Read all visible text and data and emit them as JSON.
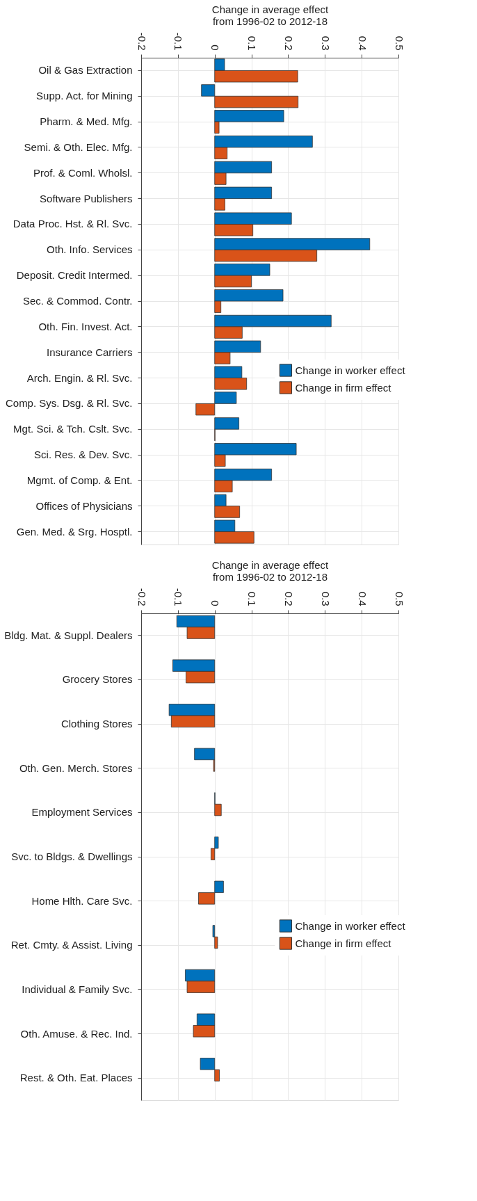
{
  "chart_data": [
    {
      "type": "bar",
      "orientation": "horizontal",
      "xlabel": "Change in average effect\nfrom 1996-02 to 2012-18",
      "categories": [
        "Oil & Gas Extraction",
        "Supp. Act. for Mining",
        "Pharm. & Med. Mfg.",
        "Semi. & Oth. Elec. Mfg.",
        "Prof. & Coml. Wholsl.",
        "Software Publishers",
        "Data Proc. Hst. & Rl. Svc.",
        "Oth. Info. Services",
        "Deposit. Credit Intermed.",
        "Sec. & Commod. Contr.",
        "Oth. Fin. Invest. Act.",
        "Insurance Carriers",
        "Arch. Engin. & Rl. Svc.",
        "Comp. Sys. Dsg. & Rl. Svc.",
        "Mgt. Sci. & Tch. Cslt. Svc.",
        "Sci. Res. & Dev. Svc.",
        "Mgmt. of Comp. & Ent.",
        "Offices of Physicians",
        "Gen. Med. & Srg. Hosptl."
      ],
      "series": [
        {
          "name": "Change in worker effect",
          "color": "#0072bd",
          "values": [
            0.027,
            -0.036,
            0.188,
            0.266,
            0.155,
            0.155,
            0.209,
            0.422,
            0.15,
            0.186,
            0.317,
            0.125,
            0.074,
            0.059,
            0.066,
            0.222,
            0.155,
            0.031,
            0.055
          ]
        },
        {
          "name": "Change in firm effect",
          "color": "#d95319",
          "values": [
            0.226,
            0.227,
            0.012,
            0.034,
            0.031,
            0.028,
            0.104,
            0.278,
            0.1,
            0.017,
            0.075,
            0.042,
            0.087,
            -0.051,
            0.001,
            0.029,
            0.048,
            0.068,
            0.107
          ]
        }
      ],
      "xlim": [
        -0.2,
        0.5
      ],
      "xticks": [
        -0.2,
        -0.1,
        0,
        0.1,
        0.2,
        0.3,
        0.4,
        0.5
      ],
      "grid": true,
      "legend": "right"
    },
    {
      "type": "bar",
      "orientation": "horizontal",
      "xlabel": "Change in average effect\nfrom 1996-02 to 2012-18",
      "categories": [
        "Bldg. Mat. & Suppl. Dealers",
        "Grocery Stores",
        "Clothing Stores",
        "Oth. Gen. Merch. Stores",
        "Employment Services",
        "Svc. to Bldgs. & Dwellings",
        "Home Hlth. Care Svc.",
        "Ret. Cmty. & Assist. Living",
        "Individual & Family Svc.",
        "Oth. Amuse. & Rec. Ind.",
        "Rest. & Oth. Eat. Places"
      ],
      "series": [
        {
          "name": "Change in worker effect",
          "color": "#0072bd",
          "values": [
            -0.103,
            -0.114,
            -0.124,
            -0.055,
            0.001,
            0.01,
            0.024,
            -0.005,
            -0.08,
            -0.048,
            -0.039
          ]
        },
        {
          "name": "Change in firm effect",
          "color": "#d95319",
          "values": [
            -0.075,
            -0.078,
            -0.118,
            -0.003,
            0.018,
            -0.01,
            -0.044,
            0.008,
            -0.075,
            -0.058,
            0.013
          ]
        }
      ],
      "xlim": [
        -0.2,
        0.5
      ],
      "xticks": [
        -0.2,
        -0.1,
        0,
        0.1,
        0.2,
        0.3,
        0.4,
        0.5
      ],
      "grid": true,
      "legend": "right"
    }
  ]
}
